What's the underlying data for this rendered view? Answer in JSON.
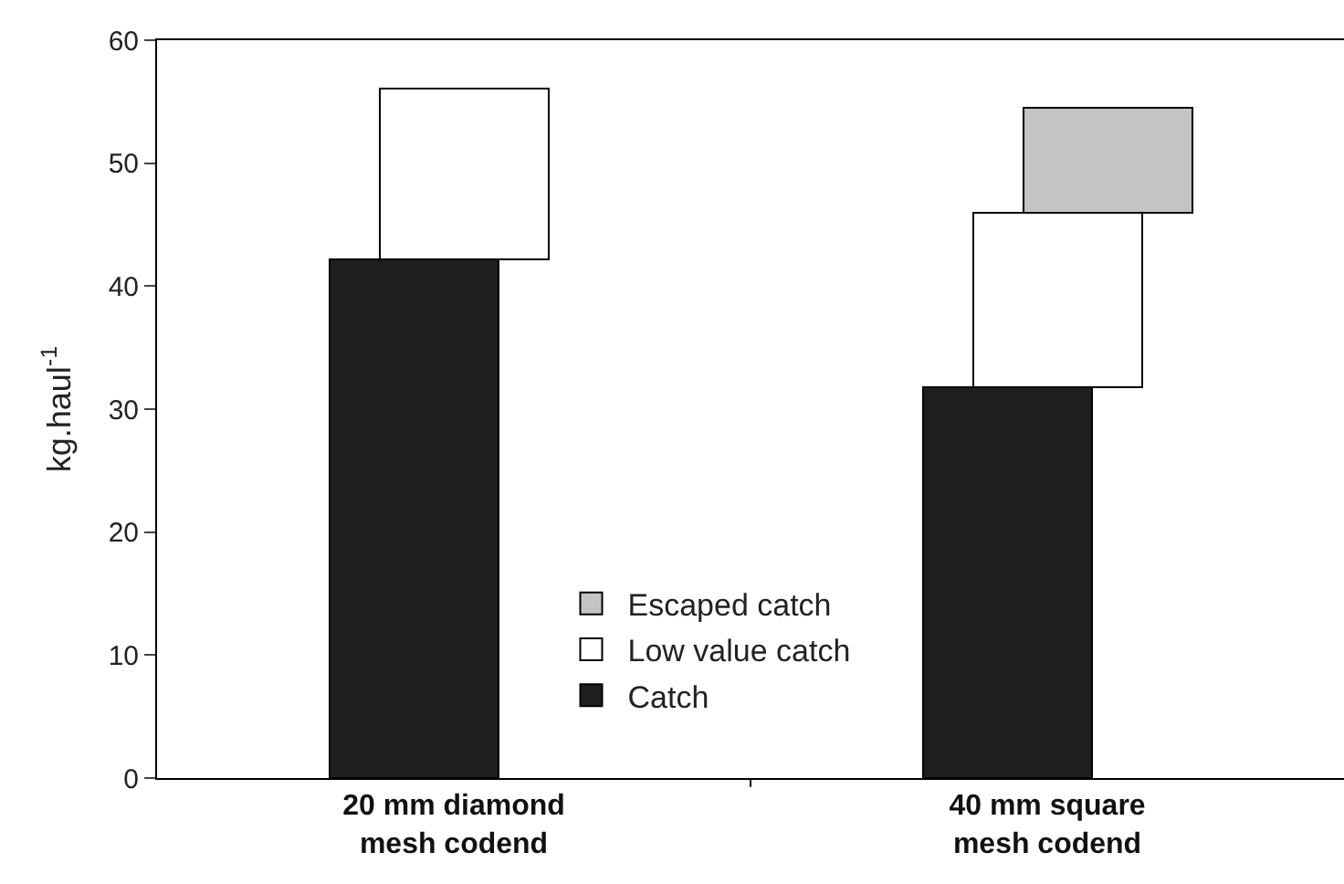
{
  "chart_data": {
    "type": "bar",
    "stacked": true,
    "ylabel": "kg.haul$^{-1}$",
    "categories": [
      "20 mm diamond\nmesh codend",
      "40 mm square\nmesh codend"
    ],
    "series": [
      {
        "name": "Catch",
        "color": "#1e1e1e",
        "values": [
          42.2,
          31.8
        ]
      },
      {
        "name": "Low value catch",
        "color": "#ffffff",
        "values": [
          13.9,
          14.2
        ]
      },
      {
        "name": "Escaped catch",
        "color": "#c4c4c4",
        "values": [
          null,
          8.5
        ]
      }
    ],
    "ylim": [
      0,
      60
    ],
    "yticks": [
      0,
      10,
      20,
      30,
      40,
      50,
      60
    ],
    "legend": "bottom"
  }
}
